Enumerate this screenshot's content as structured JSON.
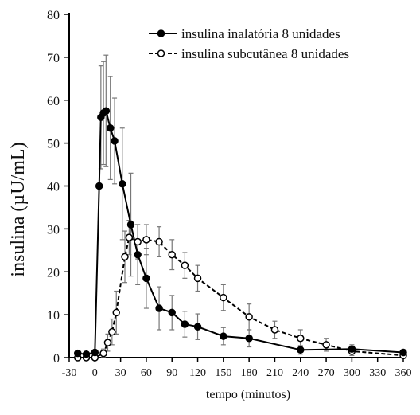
{
  "chart_data": {
    "type": "line",
    "title": "",
    "xlabel": "tempo (minutos)",
    "ylabel": "insulina (µU/mL)",
    "xlim": [
      -30,
      360
    ],
    "ylim": [
      0,
      80
    ],
    "x_ticks": [
      -30,
      0,
      30,
      60,
      90,
      120,
      150,
      180,
      210,
      240,
      270,
      300,
      330,
      360
    ],
    "y_ticks": [
      0,
      10,
      20,
      30,
      40,
      50,
      60,
      70,
      80
    ],
    "grid": false,
    "legend_position": "top-right",
    "series": [
      {
        "name": "insulina inalatória 8 unidades",
        "marker": "filled-circle",
        "line": "solid",
        "color": "#000000",
        "points": [
          {
            "x": -20,
            "y": 1,
            "err": 0
          },
          {
            "x": -10,
            "y": 0.8,
            "err": 0
          },
          {
            "x": 0,
            "y": 1.2,
            "err": 0
          },
          {
            "x": 5,
            "y": 40,
            "err": 0
          },
          {
            "x": 7,
            "y": 56,
            "err": 12
          },
          {
            "x": 10,
            "y": 57,
            "err": 12
          },
          {
            "x": 13,
            "y": 57.5,
            "err": 13
          },
          {
            "x": 18,
            "y": 53.5,
            "err": 12
          },
          {
            "x": 23,
            "y": 50.5,
            "err": 10
          },
          {
            "x": 32,
            "y": 40.5,
            "err": 13
          },
          {
            "x": 42,
            "y": 31,
            "err": 12
          },
          {
            "x": 50,
            "y": 24,
            "err": 7
          },
          {
            "x": 60,
            "y": 18.5,
            "err": 7
          },
          {
            "x": 75,
            "y": 11.5,
            "err": 5
          },
          {
            "x": 90,
            "y": 10.5,
            "err": 4
          },
          {
            "x": 105,
            "y": 7.8,
            "err": 3
          },
          {
            "x": 120,
            "y": 7.2,
            "err": 3
          },
          {
            "x": 150,
            "y": 5,
            "err": 2
          },
          {
            "x": 180,
            "y": 4.5,
            "err": 2
          },
          {
            "x": 240,
            "y": 1.8,
            "err": 1
          },
          {
            "x": 300,
            "y": 2,
            "err": 1
          },
          {
            "x": 360,
            "y": 1.2,
            "err": 0.5
          }
        ]
      },
      {
        "name": "insulina subcutânea 8 unidades",
        "marker": "open-circle",
        "line": "dashed",
        "color": "#000000",
        "points": [
          {
            "x": -20,
            "y": 0,
            "err": 0
          },
          {
            "x": -10,
            "y": 0,
            "err": 0
          },
          {
            "x": 0,
            "y": 0,
            "err": 0
          },
          {
            "x": 10,
            "y": 1,
            "err": 1
          },
          {
            "x": 15,
            "y": 3.5,
            "err": 2
          },
          {
            "x": 20,
            "y": 6,
            "err": 3
          },
          {
            "x": 25,
            "y": 10.5,
            "err": 5
          },
          {
            "x": 35,
            "y": 23.5,
            "err": 6
          },
          {
            "x": 40,
            "y": 28,
            "err": 4
          },
          {
            "x": 50,
            "y": 27,
            "err": 4
          },
          {
            "x": 60,
            "y": 27.5,
            "err": 3.5
          },
          {
            "x": 75,
            "y": 27,
            "err": 3.5
          },
          {
            "x": 90,
            "y": 24,
            "err": 3.5
          },
          {
            "x": 105,
            "y": 21.5,
            "err": 3
          },
          {
            "x": 120,
            "y": 18.5,
            "err": 3
          },
          {
            "x": 150,
            "y": 14,
            "err": 3
          },
          {
            "x": 180,
            "y": 9.5,
            "err": 3
          },
          {
            "x": 210,
            "y": 6.5,
            "err": 2
          },
          {
            "x": 240,
            "y": 4.5,
            "err": 2
          },
          {
            "x": 270,
            "y": 3,
            "err": 1.5
          },
          {
            "x": 300,
            "y": 1.5,
            "err": 1
          },
          {
            "x": 360,
            "y": 0.5,
            "err": 0.5
          }
        ]
      }
    ]
  }
}
